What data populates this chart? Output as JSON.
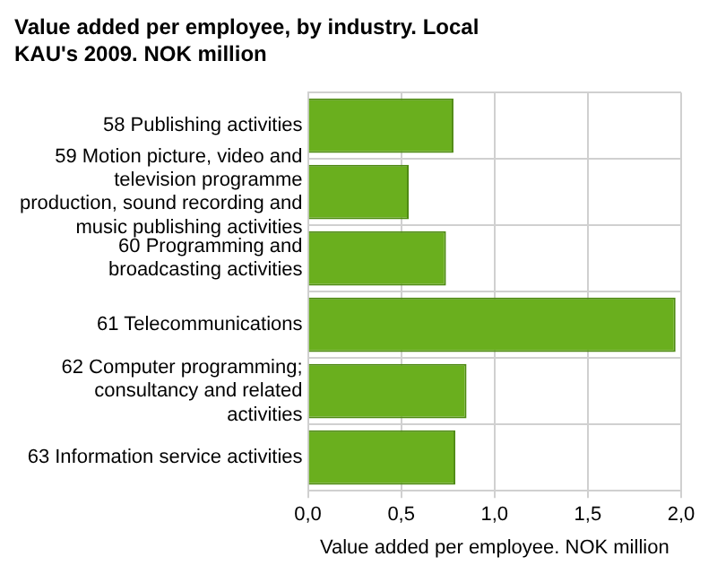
{
  "chart_data": {
    "type": "bar",
    "orientation": "horizontal",
    "title": "Value added per employee, by industry. Local KAU's 2009. NOK million",
    "xlabel": "Value added per employee. NOK million",
    "categories": [
      "58 Publishing activities",
      "59 Motion picture, video and television programme production, sound recording and music publishing activities",
      "60 Programming and broadcasting activities",
      "61 Telecommunications",
      "62 Computer programming; consultancy and related activities",
      "63 Information service activities"
    ],
    "values": [
      0.78,
      0.54,
      0.74,
      1.97,
      0.85,
      0.79
    ],
    "color": "#6aaf1e",
    "xlim": [
      0,
      2
    ],
    "xticks": [
      {
        "value": 0,
        "label": "0,0"
      },
      {
        "value": 0.5,
        "label": "0,5"
      },
      {
        "value": 1,
        "label": "1,0"
      },
      {
        "value": 1.5,
        "label": "1,5"
      },
      {
        "value": 2,
        "label": "2,0"
      }
    ],
    "grid": true,
    "legend": false
  }
}
